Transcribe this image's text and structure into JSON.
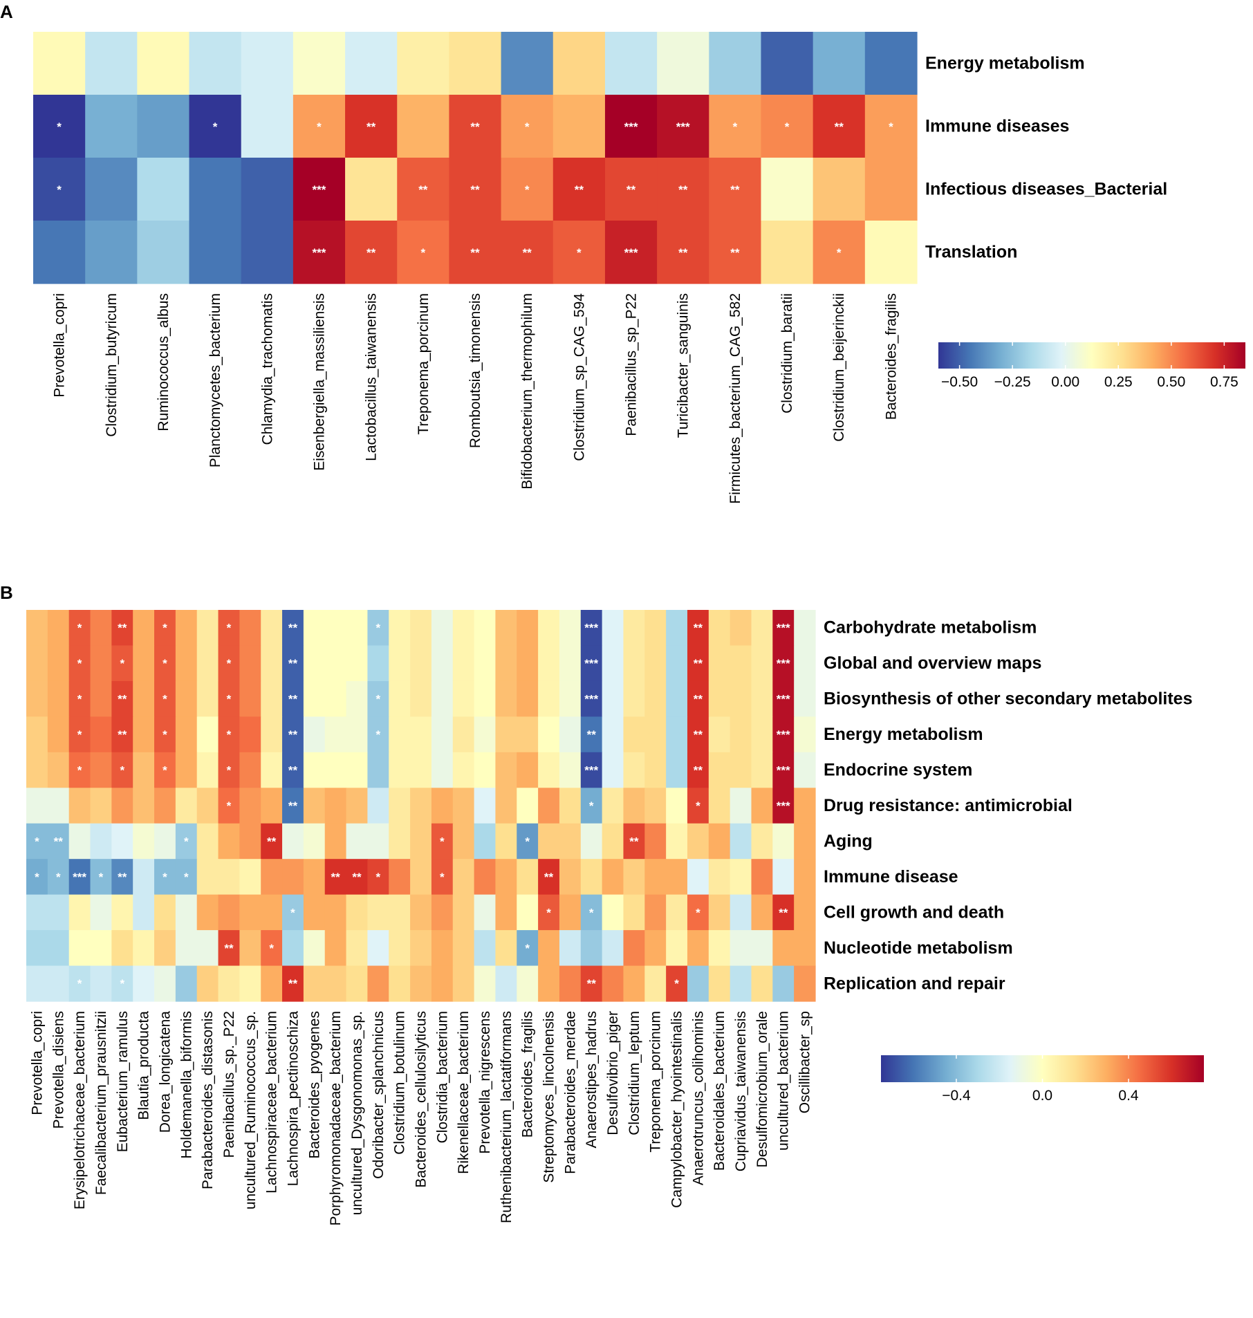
{
  "chart_data": [
    {
      "type": "heatmap",
      "panel": "A",
      "rows": [
        "Energy metabolism",
        "Immune diseases",
        "Infectious diseases_Bacterial",
        "Translation"
      ],
      "columns": [
        "Prevotella_copri",
        "Clostridium_butyricum",
        "Ruminococcus_albus",
        "Planctomycetes_bacterium",
        "Chlamydia_trachomatis",
        "Eisenbergiella_massiliensis",
        "Lactobacillus_taiwanensis",
        "Treponema_porcinum",
        "Romboutsia_timonensis",
        "Bifidobacterium_thermophilum",
        "Clostridium_sp_CAG_594",
        "Paenibacillus_sp_P22",
        "Turicibacter_sanguinis",
        "Firmicutes_bacterium_CAG_582",
        "Clostridium_baratii",
        "Clostridium_beijerinckii",
        "Bacteroides_fragilis"
      ],
      "values": [
        [
          0.15,
          -0.1,
          0.15,
          -0.1,
          -0.05,
          0.1,
          -0.05,
          0.2,
          0.25,
          -0.4,
          0.3,
          -0.1,
          0.05,
          -0.2,
          -0.5,
          -0.3,
          -0.45
        ],
        [
          -0.6,
          -0.3,
          -0.35,
          -0.6,
          -0.05,
          0.45,
          0.7,
          0.4,
          0.65,
          0.45,
          0.4,
          0.85,
          0.8,
          0.45,
          0.5,
          0.7,
          0.45
        ],
        [
          -0.55,
          -0.4,
          -0.15,
          -0.45,
          -0.5,
          0.85,
          0.25,
          0.6,
          0.65,
          0.5,
          0.7,
          0.65,
          0.65,
          0.6,
          0.1,
          0.35,
          0.45
        ],
        [
          -0.45,
          -0.35,
          -0.2,
          -0.45,
          -0.5,
          0.8,
          0.65,
          0.55,
          0.65,
          0.65,
          0.6,
          0.75,
          0.65,
          0.6,
          0.25,
          0.5,
          0.15
        ]
      ],
      "significance": [
        [
          "",
          "",
          "",
          "",
          "",
          "",
          "",
          "",
          "",
          "",
          "",
          "",
          "",
          "",
          "",
          "",
          ""
        ],
        [
          "*",
          "",
          "",
          "*",
          "",
          "*",
          "**",
          "",
          "**",
          "*",
          "",
          "***",
          "***",
          "*",
          "*",
          "**",
          "*"
        ],
        [
          "*",
          "",
          "",
          "",
          "",
          "***",
          "",
          "**",
          "**",
          "*",
          "**",
          "**",
          "**",
          "**",
          "",
          "",
          ""
        ],
        [
          "",
          "",
          "",
          "",
          "",
          "***",
          "**",
          "*",
          "**",
          "**",
          "*",
          "***",
          "**",
          "**",
          "",
          "*",
          ""
        ]
      ],
      "colorbar": {
        "min": -0.6,
        "max": 0.85,
        "ticks": [
          -0.5,
          -0.25,
          0.0,
          0.25,
          0.5,
          0.75
        ],
        "tick_labels": [
          "−0.50",
          "−0.25",
          "0.00",
          "0.25",
          "0.50",
          "0.75"
        ]
      }
    },
    {
      "type": "heatmap",
      "panel": "B",
      "rows": [
        "Carbohydrate metabolism",
        "Global and overview maps",
        "Biosynthesis of other secondary metabolites",
        "Energy metabolism",
        "Endocrine system",
        "Drug resistance: antimicrobial",
        "Aging",
        "Immune disease",
        "Cell growth and death",
        "Nucleotide metabolism",
        "Replication and repair"
      ],
      "columns": [
        "Prevotella_copri",
        "Prevotella_disiens",
        "Erysipelotrichaceae_bacterium",
        "Faecalibacterium_prausnitzii",
        "Eubacterium_ramulus",
        "Blautia_producta",
        "Dorea_longicatena",
        "Holdemanella_biformis",
        "Parabacteroides_distasonis",
        "Paenibacillus_sp._P22",
        "uncultured_Ruminococcus_sp.",
        "Lachnospiraceae_bacterium",
        "Lachnospira_pectinoschiza",
        "Bacteroides_pyogenes",
        "Porphyromonadaceae_bacterium",
        "uncultured_Dysgonomonas_sp.",
        "Odoribacter_splanchnicus",
        "Clostridium_botulinum",
        "Bacteroides_cellulosilyticus",
        "Clostridia_bacterium",
        "Rikenellaceae_bacterium",
        "Prevotella_nigrescens",
        "Ruthenibacterium_lactatiformans",
        "Bacteroides_fragilis",
        "Streptomyces_lincolnensis",
        "Parabacteroides_merdae",
        "Anaerostipes_hadrus",
        "Desulfovibrio_piger",
        "Clostridium_leptum",
        "Treponema_porcinum",
        "Campylobacter_hyointestinalis",
        "Anaerotruncus_colihominis",
        "Bacteroidales_bacterium",
        "Cupriavidus_taiwanensis",
        "Desulfomicrobium_orale",
        "uncultured_bacterium",
        "Oscillibacter_sp"
      ],
      "values": [
        [
          0.25,
          0.3,
          0.5,
          0.4,
          0.55,
          0.3,
          0.5,
          0.3,
          0.1,
          0.5,
          0.4,
          0.1,
          -0.65,
          0.0,
          0.0,
          0.0,
          -0.35,
          0.05,
          0.1,
          -0.1,
          0.05,
          0.0,
          0.25,
          0.3,
          0.05,
          -0.05,
          -0.7,
          -0.15,
          0.1,
          0.15,
          -0.3,
          0.6,
          0.15,
          0.2,
          0.1,
          0.7,
          -0.1
        ],
        [
          0.25,
          0.3,
          0.5,
          0.4,
          0.5,
          0.3,
          0.5,
          0.3,
          0.1,
          0.5,
          0.4,
          0.1,
          -0.65,
          0.0,
          0.0,
          0.0,
          -0.3,
          0.05,
          0.1,
          -0.1,
          0.05,
          0.0,
          0.25,
          0.3,
          0.05,
          -0.05,
          -0.7,
          -0.15,
          0.1,
          0.15,
          -0.3,
          0.6,
          0.15,
          0.15,
          0.1,
          0.7,
          -0.1
        ],
        [
          0.25,
          0.3,
          0.5,
          0.4,
          0.55,
          0.3,
          0.5,
          0.3,
          0.1,
          0.5,
          0.4,
          0.1,
          -0.65,
          0.0,
          0.0,
          -0.05,
          -0.35,
          0.05,
          0.1,
          -0.1,
          0.05,
          0.0,
          0.25,
          0.3,
          0.05,
          -0.05,
          -0.7,
          -0.15,
          0.1,
          0.15,
          -0.3,
          0.6,
          0.15,
          0.15,
          0.1,
          0.7,
          -0.1
        ],
        [
          0.2,
          0.3,
          0.5,
          0.45,
          0.55,
          0.3,
          0.5,
          0.3,
          0.0,
          0.5,
          0.45,
          0.1,
          -0.65,
          -0.1,
          -0.05,
          -0.05,
          -0.35,
          0.05,
          0.05,
          -0.1,
          0.1,
          -0.05,
          0.2,
          0.2,
          0.0,
          -0.1,
          -0.6,
          -0.15,
          0.15,
          0.15,
          -0.3,
          0.6,
          0.1,
          0.15,
          0.1,
          0.7,
          -0.05
        ],
        [
          0.2,
          0.25,
          0.45,
          0.4,
          0.5,
          0.25,
          0.45,
          0.3,
          0.05,
          0.5,
          0.4,
          0.05,
          -0.65,
          0.0,
          0.0,
          0.0,
          -0.35,
          0.05,
          0.05,
          -0.1,
          0.05,
          0.0,
          0.25,
          0.3,
          0.05,
          -0.05,
          -0.7,
          -0.15,
          0.1,
          0.15,
          -0.3,
          0.6,
          0.15,
          0.15,
          0.1,
          0.7,
          -0.1
        ],
        [
          -0.1,
          -0.1,
          0.25,
          0.2,
          0.35,
          0.25,
          0.35,
          0.1,
          0.2,
          0.45,
          0.35,
          0.3,
          -0.6,
          0.25,
          0.3,
          0.25,
          -0.2,
          0.1,
          0.2,
          0.3,
          0.25,
          -0.15,
          0.25,
          0.0,
          0.35,
          0.15,
          -0.45,
          0.1,
          0.25,
          0.2,
          0.0,
          0.55,
          0.15,
          -0.1,
          0.3,
          0.7,
          0.3
        ],
        [
          -0.4,
          -0.4,
          -0.1,
          -0.2,
          -0.15,
          -0.05,
          -0.1,
          -0.35,
          0.1,
          0.3,
          0.35,
          0.6,
          -0.1,
          -0.05,
          0.3,
          -0.1,
          -0.1,
          0.1,
          0.2,
          0.5,
          0.25,
          -0.3,
          0.15,
          -0.5,
          0.2,
          0.2,
          -0.1,
          0.15,
          0.55,
          0.4,
          0.05,
          0.2,
          0.3,
          -0.25,
          0.1,
          -0.05,
          0.3
        ],
        [
          -0.45,
          -0.4,
          -0.6,
          -0.4,
          -0.55,
          -0.2,
          -0.4,
          -0.4,
          0.1,
          0.1,
          0.05,
          0.35,
          0.35,
          0.3,
          0.6,
          0.6,
          0.55,
          0.4,
          0.2,
          0.5,
          0.2,
          0.4,
          0.3,
          0.15,
          0.6,
          0.25,
          0.15,
          0.3,
          0.2,
          0.3,
          0.3,
          -0.15,
          0.1,
          0.05,
          0.4,
          -0.15,
          0.3
        ],
        [
          -0.25,
          -0.25,
          0.05,
          -0.1,
          0.05,
          -0.2,
          0.15,
          -0.1,
          0.3,
          0.35,
          0.3,
          0.3,
          -0.35,
          0.3,
          0.3,
          0.15,
          0.1,
          0.1,
          0.25,
          0.35,
          0.2,
          -0.1,
          0.3,
          0.0,
          0.5,
          0.3,
          -0.4,
          0.0,
          0.15,
          0.35,
          0.1,
          0.45,
          0.2,
          -0.2,
          0.3,
          0.6,
          0.3
        ],
        [
          -0.3,
          -0.3,
          0.0,
          0.0,
          0.15,
          0.05,
          0.2,
          -0.1,
          -0.1,
          0.55,
          0.25,
          0.45,
          -0.3,
          -0.05,
          0.3,
          0.1,
          -0.15,
          0.1,
          0.2,
          0.3,
          0.2,
          -0.25,
          0.15,
          -0.45,
          0.3,
          -0.2,
          -0.35,
          -0.2,
          0.4,
          0.3,
          0.05,
          0.3,
          0.05,
          -0.1,
          -0.1,
          0.3,
          0.3
        ],
        [
          -0.2,
          -0.2,
          -0.25,
          -0.2,
          -0.25,
          -0.15,
          -0.1,
          -0.35,
          0.2,
          0.1,
          0.05,
          0.3,
          0.6,
          0.2,
          0.2,
          0.15,
          0.35,
          0.15,
          0.25,
          0.3,
          0.2,
          -0.05,
          -0.2,
          -0.05,
          0.3,
          0.4,
          0.55,
          0.4,
          0.3,
          0.1,
          0.55,
          -0.35,
          0.15,
          -0.25,
          0.15,
          -0.35,
          0.35
        ]
      ],
      "significance": [
        [
          "",
          "",
          "*",
          "",
          "**",
          "",
          "*",
          "",
          "",
          "*",
          "",
          "",
          "**",
          "",
          "",
          "",
          "*",
          "",
          "",
          "",
          "",
          "",
          "",
          "",
          "",
          "",
          "***",
          "",
          "",
          "",
          "",
          "**",
          "",
          "",
          "",
          "***",
          ""
        ],
        [
          "",
          "",
          "*",
          "",
          "*",
          "",
          "*",
          "",
          "",
          "*",
          "",
          "",
          "**",
          "",
          "",
          "",
          "",
          "",
          "",
          "",
          "",
          "",
          "",
          "",
          "",
          "",
          "***",
          "",
          "",
          "",
          "",
          "**",
          "",
          "",
          "",
          "***",
          ""
        ],
        [
          "",
          "",
          "*",
          "",
          "**",
          "",
          "*",
          "",
          "",
          "*",
          "",
          "",
          "**",
          "",
          "",
          "",
          "*",
          "",
          "",
          "",
          "",
          "",
          "",
          "",
          "",
          "",
          "***",
          "",
          "",
          "",
          "",
          "**",
          "",
          "",
          "",
          "***",
          ""
        ],
        [
          "",
          "",
          "*",
          "",
          "**",
          "",
          "*",
          "",
          "",
          "*",
          "",
          "",
          "**",
          "",
          "",
          "",
          "*",
          "",
          "",
          "",
          "",
          "",
          "",
          "",
          "",
          "",
          "**",
          "",
          "",
          "",
          "",
          "**",
          "",
          "",
          "",
          "***",
          ""
        ],
        [
          "",
          "",
          "*",
          "",
          "*",
          "",
          "*",
          "",
          "",
          "*",
          "",
          "",
          "**",
          "",
          "",
          "",
          "",
          "",
          "",
          "",
          "",
          "",
          "",
          "",
          "",
          "",
          "***",
          "",
          "",
          "",
          "",
          "**",
          "",
          "",
          "",
          "***",
          ""
        ],
        [
          "",
          "",
          "",
          "",
          "",
          "",
          "",
          "",
          "",
          "*",
          "",
          "",
          "**",
          "",
          "",
          "",
          "",
          "",
          "",
          "",
          "",
          "",
          "",
          "",
          "",
          "",
          "*",
          "",
          "",
          "",
          "",
          "*",
          "",
          "",
          "",
          "***",
          ""
        ],
        [
          "*",
          "**",
          "",
          "",
          "",
          "",
          "",
          "*",
          "",
          "",
          "",
          "**",
          "",
          "",
          "",
          "",
          "",
          "",
          "",
          "*",
          "",
          "",
          "",
          "*",
          "",
          "",
          "",
          "",
          "**",
          "",
          "",
          "",
          "",
          "",
          "",
          "",
          ""
        ],
        [
          "*",
          "*",
          "***",
          "*",
          "**",
          "",
          "*",
          "*",
          "",
          "",
          "",
          "",
          "",
          "",
          "**",
          "**",
          "*",
          "",
          "",
          "*",
          "",
          "",
          "",
          "",
          "**",
          "",
          "",
          "",
          "",
          "",
          "",
          "",
          "",
          "",
          "",
          "",
          ""
        ],
        [
          "",
          "",
          "",
          "",
          "",
          "",
          "",
          "",
          "",
          "",
          "",
          "",
          "*",
          "",
          "",
          "",
          "",
          "",
          "",
          "",
          "",
          "",
          "",
          "",
          "*",
          "",
          "*",
          "",
          "",
          "",
          "",
          "*",
          "",
          "",
          "",
          "**",
          ""
        ],
        [
          "",
          "",
          "",
          "",
          "",
          "",
          "",
          "",
          "",
          "**",
          "",
          "*",
          "",
          "",
          "",
          "",
          "",
          "",
          "",
          "",
          "",
          "",
          "",
          "*",
          "",
          "",
          "",
          "",
          "",
          "",
          "",
          "",
          "",
          "",
          "",
          "",
          ""
        ],
        [
          "",
          "",
          "*",
          "",
          "*",
          "",
          "",
          "",
          "",
          "",
          "",
          "",
          "**",
          "",
          "",
          "",
          "",
          "",
          "",
          "",
          "",
          "",
          "",
          "",
          "",
          "",
          "**",
          "",
          "",
          "",
          "*",
          "",
          "",
          "",
          "",
          "",
          ""
        ]
      ],
      "colorbar": {
        "min": -0.75,
        "max": 0.75,
        "ticks": [
          -0.4,
          0.0,
          0.4
        ],
        "tick_labels": [
          "−0.4",
          "0.0",
          "0.4"
        ]
      }
    }
  ]
}
